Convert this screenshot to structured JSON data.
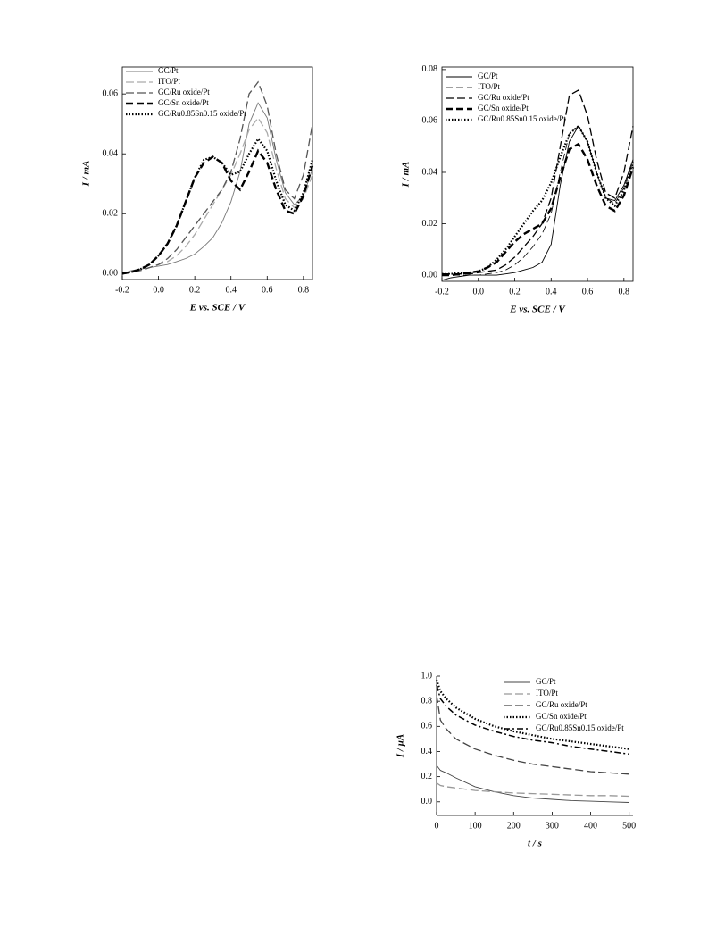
{
  "chart_data": [
    {
      "type": "line",
      "ylabel": "I / mA",
      "xlabel": "E vs. SCE / V",
      "legend": "upper left",
      "frame": true,
      "xlim": [
        -0.2,
        0.85
      ],
      "ylim": [
        -0.002,
        0.069
      ],
      "xticks": [
        -0.2,
        {
          "value": 0,
          "label": "0.0"
        },
        0.2,
        0.4,
        0.6,
        0.8
      ],
      "yticks": [
        {
          "value": 0,
          "label": "0.00"
        },
        {
          "value": 0.02,
          "label": "0.02"
        },
        {
          "value": 0.04,
          "label": "0.04"
        },
        {
          "value": 0.06,
          "label": "0.06"
        }
      ],
      "x": [
        -0.2,
        -0.15,
        -0.1,
        -0.05,
        0,
        0.05,
        0.1,
        0.15,
        0.2,
        0.25,
        0.3,
        0.35,
        0.4,
        0.45,
        0.5,
        0.55,
        0.6,
        0.65,
        0.7,
        0.75,
        0.8,
        0.85
      ],
      "series": [
        {
          "name": "GC/Pt",
          "color": "#777777",
          "style": "solid",
          "values": [
            0,
            0.001,
            0.0015,
            0.002,
            0.0025,
            0.003,
            0.004,
            0.005,
            0.0065,
            0.009,
            0.012,
            0.017,
            0.024,
            0.034,
            0.05,
            0.057,
            0.052,
            0.038,
            0.027,
            0.023,
            0.026,
            0.035
          ]
        },
        {
          "name": "ITO/Pt",
          "color": "#aaaaaa",
          "style": "dashed",
          "values": [
            0,
            0.0005,
            0.001,
            0.002,
            0.003,
            0.004,
            0.006,
            0.009,
            0.013,
            0.018,
            0.023,
            0.028,
            0.033,
            0.04,
            0.048,
            0.052,
            0.047,
            0.035,
            0.025,
            0.022,
            0.025,
            0.033
          ]
        },
        {
          "name": "GC/Ru oxide/Pt",
          "color": "#555555",
          "style": "dashed",
          "values": [
            0,
            0.0005,
            0.001,
            0.002,
            0.003,
            0.005,
            0.008,
            0.012,
            0.016,
            0.02,
            0.024,
            0.028,
            0.034,
            0.045,
            0.06,
            0.064,
            0.056,
            0.04,
            0.028,
            0.025,
            0.033,
            0.05
          ]
        },
        {
          "name": "GC/Sn oxide/Pt",
          "color": "#000000",
          "style": "bold-dashed",
          "values": [
            0,
            0.0005,
            0.0015,
            0.003,
            0.006,
            0.01,
            0.016,
            0.024,
            0.032,
            0.037,
            0.039,
            0.037,
            0.031,
            0.028,
            0.034,
            0.041,
            0.037,
            0.028,
            0.021,
            0.02,
            0.026,
            0.036
          ]
        },
        {
          "name": "GC/Ru0.85Sn0.15 oxide/Pt",
          "color": "#000000",
          "style": "dotted",
          "values": [
            0,
            0.0005,
            0.0015,
            0.003,
            0.006,
            0.01,
            0.016,
            0.024,
            0.032,
            0.038,
            0.039,
            0.037,
            0.033,
            0.034,
            0.04,
            0.045,
            0.041,
            0.031,
            0.023,
            0.021,
            0.027,
            0.038
          ]
        }
      ]
    },
    {
      "type": "line",
      "ylabel": "I / mA",
      "xlabel": "E vs. SCE / V",
      "legend": "upper left",
      "frame": true,
      "xlim": [
        -0.2,
        0.85
      ],
      "ylim": [
        -0.0024,
        0.081
      ],
      "xticks": [
        -0.2,
        {
          "value": 0,
          "label": "0.0"
        },
        0.2,
        0.4,
        0.6,
        0.8
      ],
      "yticks": [
        {
          "value": 0,
          "label": "0.00"
        },
        {
          "value": 0.02,
          "label": "0.02"
        },
        {
          "value": 0.04,
          "label": "0.04"
        },
        {
          "value": 0.06,
          "label": "0.06"
        },
        {
          "value": 0.08,
          "label": "0.08"
        }
      ],
      "x": [
        -0.2,
        -0.15,
        -0.1,
        -0.05,
        0,
        0.05,
        0.1,
        0.15,
        0.2,
        0.25,
        0.3,
        0.35,
        0.4,
        0.45,
        0.5,
        0.55,
        0.6,
        0.65,
        0.7,
        0.75,
        0.8,
        0.85
      ],
      "series": [
        {
          "name": "GC/Pt",
          "color": "#000000",
          "style": "solid",
          "values": [
            -0.002,
            -0.001,
            -0.0005,
            0,
            0,
            0,
            0,
            0.0005,
            0.001,
            0.002,
            0.003,
            0.005,
            0.012,
            0.035,
            0.052,
            0.058,
            0.052,
            0.04,
            0.03,
            0.029,
            0.035,
            0.045
          ]
        },
        {
          "name": "ITO/Pt",
          "color": "#000000",
          "style": "thin-dashed",
          "values": [
            0,
            0,
            0,
            0,
            0,
            0.0005,
            0.001,
            0.002,
            0.004,
            0.007,
            0.011,
            0.016,
            0.024,
            0.04,
            0.055,
            0.058,
            0.052,
            0.04,
            0.03,
            0.028,
            0.034,
            0.044
          ]
        },
        {
          "name": "GC/Ru oxide/Pt",
          "color": "#000000",
          "style": "dashed",
          "values": [
            0.0005,
            0.0005,
            0.0005,
            0.0005,
            0.001,
            0.0015,
            0.002,
            0.004,
            0.007,
            0.011,
            0.015,
            0.02,
            0.03,
            0.05,
            0.07,
            0.072,
            0.062,
            0.045,
            0.032,
            0.03,
            0.04,
            0.058
          ]
        },
        {
          "name": "GC/Sn oxide/Pt",
          "color": "#000000",
          "style": "bold-dashed",
          "values": [
            0,
            0,
            0.0005,
            0.001,
            0.0015,
            0.003,
            0.005,
            0.009,
            0.013,
            0.016,
            0.018,
            0.02,
            0.026,
            0.038,
            0.049,
            0.051,
            0.045,
            0.035,
            0.027,
            0.025,
            0.031,
            0.042
          ]
        },
        {
          "name": "GC/Ru0.85Sn0.15 oxide/Pt",
          "color": "#000000",
          "style": "dotted",
          "values": [
            0.0005,
            0.0005,
            0.001,
            0.001,
            0.0015,
            0.003,
            0.006,
            0.01,
            0.015,
            0.02,
            0.025,
            0.029,
            0.036,
            0.046,
            0.055,
            0.058,
            0.052,
            0.04,
            0.03,
            0.027,
            0.033,
            0.044
          ]
        }
      ]
    },
    {
      "type": "line",
      "ylabel": "I / μA",
      "xlabel": "t / s",
      "legend": "upper right",
      "frame": false,
      "xlim": [
        0,
        510
      ],
      "ylim": [
        -0.108,
        1.0
      ],
      "xticks": [
        0,
        100,
        200,
        300,
        400,
        500
      ],
      "yticks": [
        {
          "value": 0,
          "label": "0.0"
        },
        0.2,
        0.4,
        0.6,
        0.8,
        {
          "value": 1,
          "label": "1.0"
        }
      ],
      "x": [
        0,
        10,
        25,
        50,
        100,
        150,
        200,
        250,
        300,
        350,
        400,
        450,
        500
      ],
      "series": [
        {
          "name": "GC/Pt",
          "color": "#444444",
          "style": "solid",
          "values": [
            0.29,
            0.25,
            0.23,
            0.19,
            0.12,
            0.08,
            0.05,
            0.03,
            0.02,
            0.01,
            0.005,
            0,
            -0.005
          ]
        },
        {
          "name": "ITO/Pt",
          "color": "#999999",
          "style": "dashed",
          "values": [
            0.15,
            0.13,
            0.12,
            0.11,
            0.09,
            0.08,
            0.07,
            0.065,
            0.06,
            0.055,
            0.05,
            0.05,
            0.045
          ]
        },
        {
          "name": "GC/Ru oxide/Pt",
          "color": "#444444",
          "style": "dashed",
          "values": [
            0.85,
            0.65,
            0.58,
            0.5,
            0.42,
            0.37,
            0.33,
            0.3,
            0.28,
            0.26,
            0.24,
            0.23,
            0.22
          ]
        },
        {
          "name": "GC/Sn oxide/Pt",
          "color": "#000000",
          "style": "dotted",
          "values": [
            0.97,
            0.88,
            0.82,
            0.75,
            0.66,
            0.6,
            0.56,
            0.53,
            0.5,
            0.48,
            0.46,
            0.44,
            0.42
          ]
        },
        {
          "name": "GC/Ru0.85Sn0.15 oxide/Pt",
          "color": "#000000",
          "style": "dash-dot",
          "values": [
            0.93,
            0.82,
            0.76,
            0.69,
            0.61,
            0.56,
            0.52,
            0.49,
            0.47,
            0.44,
            0.42,
            0.4,
            0.38
          ]
        }
      ]
    }
  ]
}
